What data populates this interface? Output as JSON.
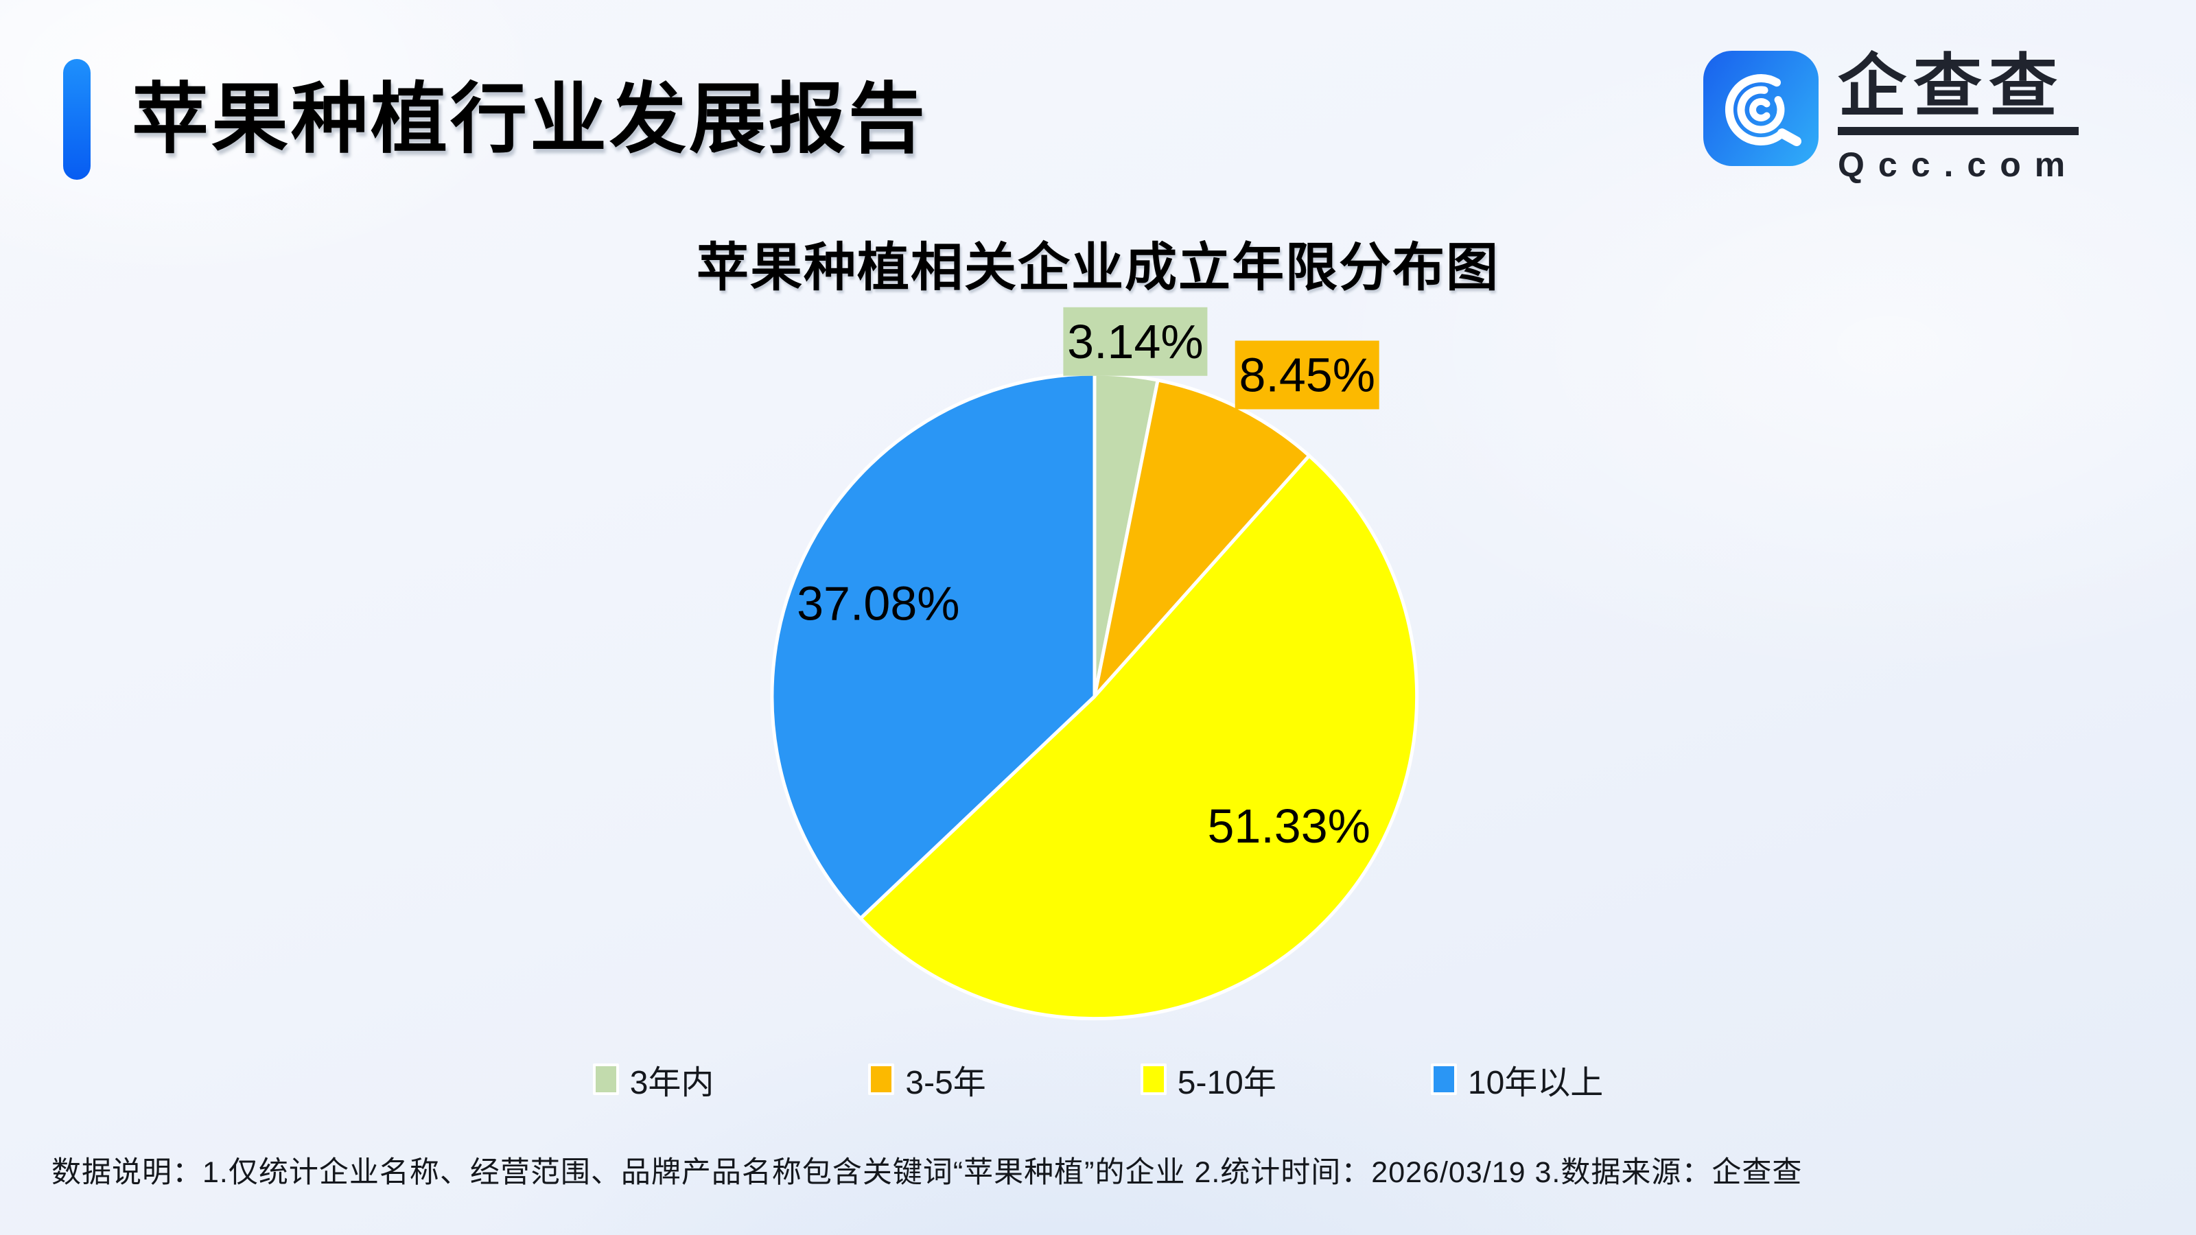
{
  "header": {
    "title": "苹果种植行业发展报告",
    "accent_gradient": [
      "#1e90fc",
      "#075cf2"
    ]
  },
  "logo": {
    "brand_cn": "企查查",
    "brand_domain": "Qcc.com",
    "ink_color": "#20242e",
    "icon_gradient": [
      "#1a66ee",
      "#2fa9f8"
    ]
  },
  "chart_data": {
    "type": "pie",
    "title": "苹果种植相关企业成立年限分布图",
    "unit": "%",
    "start_angle_deg": 0,
    "direction": "clockwise",
    "legend_position": "bottom",
    "label_text_color": "#000000",
    "slice_stroke_color": "#ffffff",
    "slices": [
      {
        "label": "3年内",
        "value": 3.14,
        "display": "3.14%",
        "color": "#c2dbad",
        "label_style": "outside-box"
      },
      {
        "label": "3-5年",
        "value": 8.45,
        "display": "8.45%",
        "color": "#fcb900",
        "label_style": "outside-box"
      },
      {
        "label": "5-10年",
        "value": 51.33,
        "display": "51.33%",
        "color": "#ffff00",
        "label_style": "inside"
      },
      {
        "label": "10年以上",
        "value": 37.08,
        "display": "37.08%",
        "color": "#2a96f5",
        "label_style": "inside"
      }
    ]
  },
  "footer": {
    "note": "数据说明：1.仅统计企业名称、经营范围、品牌产品名称包含关键词“苹果种植”的企业  2.统计时间：2026/03/19   3.数据来源：企查查"
  }
}
